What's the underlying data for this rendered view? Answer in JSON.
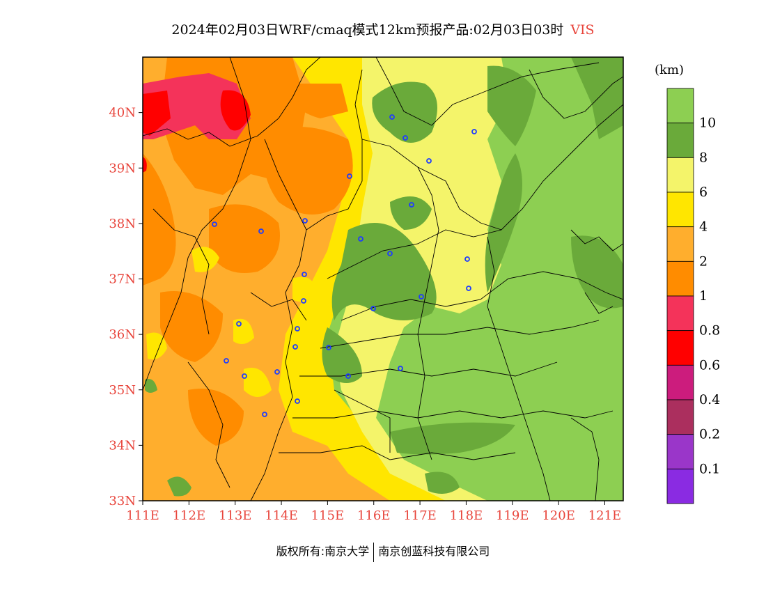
{
  "header": {
    "title": "2024年02月03日WRF/cmaq模式12km预报产品:02月03日03时",
    "variable": "VIS"
  },
  "map": {
    "lat_ticks": [
      "33N",
      "34N",
      "35N",
      "36N",
      "37N",
      "38N",
      "39N",
      "40N"
    ],
    "lon_ticks": [
      "111E",
      "112E",
      "113E",
      "114E",
      "115E",
      "116E",
      "117E",
      "118E",
      "119E",
      "120E",
      "121E"
    ],
    "lon_range": [
      111,
      121.4
    ],
    "lat_range": [
      33,
      41
    ],
    "tick_color": "#e8453c"
  },
  "legend": {
    "unit": "(km)",
    "levels": [
      {
        "label": "10",
        "color": "#8dcf52"
      },
      {
        "label": "8",
        "color": "#6aaa3a"
      },
      {
        "label": "6",
        "color": "#f4f46a"
      },
      {
        "label": "4",
        "color": "#ffe600"
      },
      {
        "label": "2",
        "color": "#ffae2d"
      },
      {
        "label": "1",
        "color": "#ff8c00"
      },
      {
        "label": "0.8",
        "color": "#f4335a"
      },
      {
        "label": "0.6",
        "color": "#ff0000"
      },
      {
        "label": "0.4",
        "color": "#cc1c7d"
      },
      {
        "label": "0.2",
        "color": "#ab2f5e"
      },
      {
        "label": "0.1",
        "color": "#9a36c9"
      },
      {
        "label": "",
        "color": "#8a2be2"
      }
    ]
  },
  "footer": {
    "left": "版权所有:南京大学",
    "right": "南京创蓝科技有限公司"
  }
}
